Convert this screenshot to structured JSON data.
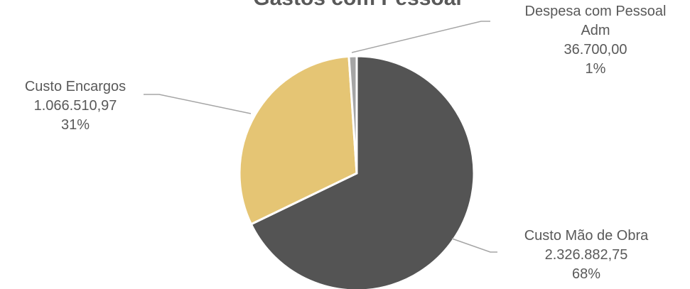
{
  "chart_data": {
    "type": "pie",
    "title": "Gastos com Pessoal",
    "slices": [
      {
        "label_lines": [
          "Custo Mão de Obra"
        ],
        "value": 2326882.75,
        "value_text": "2.326.882,75",
        "percent_text": "68%",
        "color": "#545454"
      },
      {
        "label_lines": [
          "Custo Encargos"
        ],
        "value": 1066510.97,
        "value_text": "1.066.510,97",
        "percent_text": "31%",
        "color": "#E5C574"
      },
      {
        "label_lines": [
          "Despesa com Pessoal",
          "Adm"
        ],
        "value": 36700.0,
        "value_text": "36.700,00",
        "percent_text": "1%",
        "color": "#A5A5A5"
      }
    ],
    "legend": "none",
    "leader_line_color": "#A5A5A5"
  }
}
